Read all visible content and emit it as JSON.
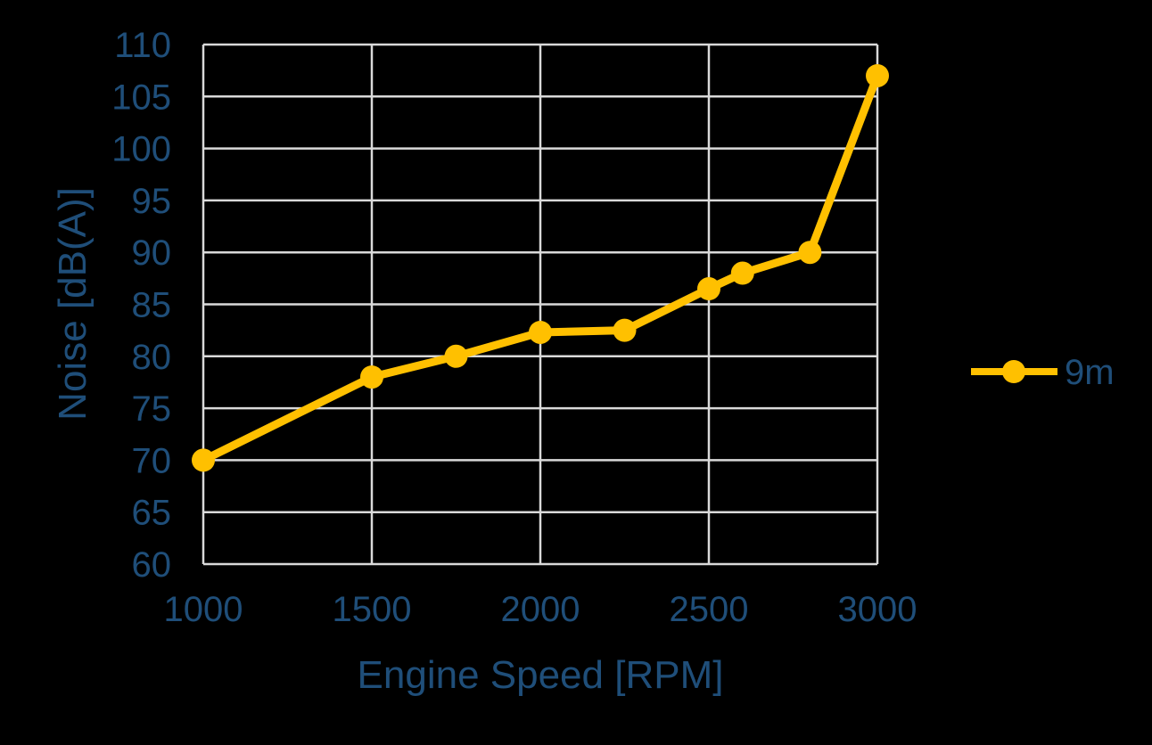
{
  "figure": {
    "background": "#000000",
    "text_color": "#1F4E79",
    "gridline_color": "#D9D9D9",
    "accent_color": "#FFC000"
  },
  "chart_data": {
    "type": "line",
    "title": "",
    "xlabel": "Engine Speed [RPM]",
    "ylabel": "Noise [dB(A)]",
    "xlim": [
      1000,
      3000
    ],
    "ylim": [
      60,
      110
    ],
    "xticks": [
      1000,
      1500,
      2000,
      2500,
      3000
    ],
    "yticks": [
      60,
      65,
      70,
      75,
      80,
      85,
      90,
      95,
      100,
      105,
      110
    ],
    "grid": true,
    "legend_position": "right",
    "series": [
      {
        "name": "9m",
        "color": "#FFC000",
        "marker": "circle",
        "x": [
          1000,
          1500,
          1750,
          2000,
          2250,
          2500,
          2600,
          2800,
          3000
        ],
        "y": [
          70,
          78,
          80,
          82.3,
          82.5,
          86.5,
          88,
          90,
          107
        ]
      }
    ]
  }
}
